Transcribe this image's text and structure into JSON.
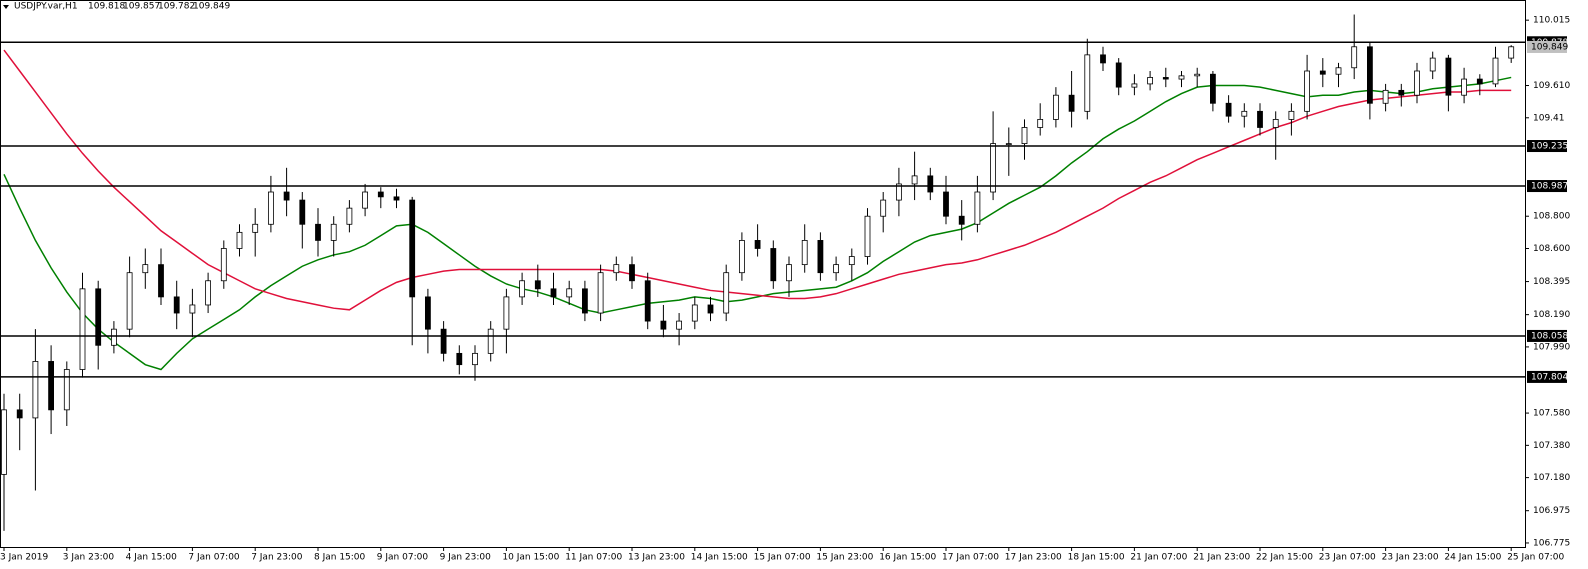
{
  "chart_data": {
    "type": "candlestick",
    "title": "USDJPY.var,H1",
    "header_prices": [
      109.818,
      109.857,
      109.782,
      109.849
    ],
    "current_price": 109.849,
    "categories": [
      "3 Jan 2019",
      null,
      null,
      null,
      "3 Jan 23:00",
      null,
      null,
      null,
      "4 Jan 15:00",
      null,
      null,
      null,
      "7 Jan 07:00",
      null,
      null,
      null,
      "7 Jan 23:00",
      null,
      null,
      null,
      "8 Jan 15:00",
      null,
      null,
      null,
      "9 Jan 07:00",
      null,
      null,
      null,
      "9 Jan 23:00",
      null,
      null,
      null,
      "10 Jan 15:00",
      null,
      null,
      null,
      "11 Jan 07:00",
      null,
      null,
      null,
      "13 Jan 23:00",
      null,
      null,
      null,
      "14 Jan 15:00",
      null,
      null,
      null,
      "15 Jan 07:00",
      null,
      null,
      null,
      "15 Jan 23:00",
      null,
      null,
      null,
      "16 Jan 15:00",
      null,
      null,
      null,
      "17 Jan 07:00",
      null,
      null,
      null,
      "17 Jan 23:00",
      null,
      null,
      null,
      "18 Jan 15:00",
      null,
      null,
      null,
      "21 Jan 07:00",
      null,
      null,
      null,
      "21 Jan 23:00",
      null,
      null,
      null,
      "22 Jan 15:00",
      null,
      null,
      null,
      "23 Jan 07:00",
      null,
      null,
      null,
      "23 Jan 23:00",
      null,
      null,
      null,
      "24 Jan 15:00",
      null,
      null,
      null,
      "25 Jan 07:00"
    ],
    "open": [
      107.2,
      107.6,
      107.55,
      107.9,
      107.6,
      107.85,
      108.35,
      108.0,
      108.1,
      108.45,
      108.5,
      108.3,
      108.2,
      108.25,
      108.4,
      108.6,
      108.7,
      108.75,
      108.95,
      108.9,
      108.75,
      108.65,
      108.75,
      108.85,
      108.95,
      108.92,
      108.9,
      108.3,
      108.1,
      107.95,
      107.88,
      107.95,
      108.1,
      108.3,
      108.4,
      108.35,
      108.3,
      108.35,
      108.2,
      108.45,
      108.5,
      108.4,
      108.15,
      108.1,
      108.15,
      108.25,
      108.2,
      108.45,
      108.65,
      108.6,
      108.4,
      108.5,
      108.65,
      108.45,
      108.5,
      108.55,
      108.8,
      108.9,
      109.0,
      109.05,
      108.95,
      108.8,
      108.75,
      108.95,
      109.25,
      109.25,
      109.35,
      109.4,
      109.55,
      109.45,
      109.8,
      109.75,
      109.6,
      109.62,
      109.66,
      109.65,
      109.67,
      109.68,
      109.5,
      109.42,
      109.45,
      109.35,
      109.4,
      109.45,
      109.7,
      109.68,
      109.72,
      109.85,
      109.5,
      109.58,
      109.55,
      109.7,
      109.78,
      109.55,
      109.65,
      109.62,
      109.78
    ],
    "high": [
      107.7,
      107.7,
      108.1,
      108.0,
      107.9,
      108.45,
      108.4,
      108.15,
      108.55,
      108.6,
      108.6,
      108.4,
      108.35,
      108.45,
      108.65,
      108.75,
      108.85,
      109.05,
      109.1,
      108.95,
      108.85,
      108.8,
      108.9,
      109.0,
      108.98,
      108.97,
      108.92,
      108.35,
      108.15,
      108.0,
      108.0,
      108.15,
      108.35,
      108.45,
      108.5,
      108.45,
      108.4,
      108.4,
      108.5,
      108.55,
      108.55,
      108.45,
      108.25,
      108.2,
      108.3,
      108.3,
      108.5,
      108.7,
      108.75,
      108.65,
      108.55,
      108.75,
      108.7,
      108.55,
      108.6,
      108.85,
      108.95,
      109.1,
      109.2,
      109.1,
      109.05,
      108.9,
      109.05,
      109.45,
      109.35,
      109.4,
      109.5,
      109.6,
      109.7,
      109.9,
      109.85,
      109.78,
      109.68,
      109.7,
      109.72,
      109.7,
      109.72,
      109.7,
      109.55,
      109.5,
      109.5,
      109.45,
      109.5,
      109.8,
      109.78,
      109.75,
      110.05,
      109.88,
      109.62,
      109.62,
      109.75,
      109.82,
      109.8,
      109.72,
      109.68,
      109.85,
      109.86
    ],
    "low": [
      106.85,
      107.35,
      107.1,
      107.45,
      107.5,
      107.8,
      107.85,
      107.95,
      108.05,
      108.35,
      108.25,
      108.1,
      108.05,
      108.2,
      108.35,
      108.55,
      108.55,
      108.7,
      108.8,
      108.6,
      108.55,
      108.55,
      108.7,
      108.8,
      108.85,
      108.85,
      108.0,
      107.95,
      107.9,
      107.82,
      107.78,
      107.9,
      107.95,
      108.25,
      108.3,
      108.25,
      108.25,
      108.15,
      108.15,
      108.4,
      108.35,
      108.1,
      108.05,
      108.0,
      108.1,
      108.15,
      108.15,
      108.4,
      108.55,
      108.35,
      108.3,
      108.45,
      108.4,
      108.4,
      108.4,
      108.5,
      108.7,
      108.8,
      108.9,
      108.9,
      108.75,
      108.65,
      108.7,
      108.9,
      109.05,
      109.15,
      109.3,
      109.35,
      109.35,
      109.4,
      109.7,
      109.55,
      109.55,
      109.58,
      109.6,
      109.6,
      109.6,
      109.45,
      109.38,
      109.35,
      109.3,
      109.15,
      109.3,
      109.4,
      109.6,
      109.6,
      109.65,
      109.4,
      109.45,
      109.48,
      109.5,
      109.65,
      109.45,
      109.5,
      109.55,
      109.6,
      109.75
    ],
    "close": [
      107.6,
      107.55,
      107.9,
      107.6,
      107.85,
      108.35,
      108.0,
      108.1,
      108.45,
      108.5,
      108.3,
      108.2,
      108.25,
      108.4,
      108.6,
      108.7,
      108.75,
      108.95,
      108.9,
      108.75,
      108.65,
      108.75,
      108.85,
      108.95,
      108.92,
      108.9,
      108.3,
      108.1,
      107.95,
      107.88,
      107.95,
      108.1,
      108.3,
      108.4,
      108.35,
      108.3,
      108.35,
      108.2,
      108.45,
      108.5,
      108.4,
      108.15,
      108.1,
      108.15,
      108.25,
      108.2,
      108.45,
      108.65,
      108.6,
      108.4,
      108.5,
      108.65,
      108.45,
      108.5,
      108.55,
      108.8,
      108.9,
      109.0,
      109.05,
      108.95,
      108.8,
      108.75,
      108.95,
      109.25,
      109.25,
      109.35,
      109.4,
      109.55,
      109.45,
      109.8,
      109.75,
      109.6,
      109.62,
      109.66,
      109.65,
      109.67,
      109.68,
      109.5,
      109.42,
      109.45,
      109.35,
      109.4,
      109.45,
      109.7,
      109.68,
      109.72,
      109.85,
      109.5,
      109.58,
      109.55,
      109.7,
      109.78,
      109.55,
      109.65,
      109.62,
      109.78,
      109.85
    ],
    "series": [
      {
        "color": "#008000",
        "values": [
          109.06,
          108.85,
          108.65,
          108.48,
          108.33,
          108.2,
          108.1,
          108.02,
          107.95,
          107.88,
          107.85,
          107.95,
          108.04,
          108.1,
          108.16,
          108.22,
          108.3,
          108.37,
          108.43,
          108.49,
          108.53,
          108.56,
          108.58,
          108.62,
          108.68,
          108.74,
          108.75,
          108.7,
          108.63,
          108.56,
          108.49,
          108.43,
          108.38,
          108.35,
          108.33,
          108.3,
          108.26,
          108.22,
          108.2,
          108.22,
          108.24,
          108.26,
          108.27,
          108.28,
          108.3,
          108.29,
          108.27,
          108.28,
          108.3,
          108.32,
          108.33,
          108.34,
          108.35,
          108.36,
          108.4,
          108.45,
          108.52,
          108.58,
          108.64,
          108.68,
          108.7,
          108.72,
          108.76,
          108.82,
          108.88,
          108.93,
          108.98,
          109.05,
          109.13,
          109.2,
          109.28,
          109.34,
          109.39,
          109.45,
          109.51,
          109.56,
          109.6,
          109.61,
          109.61,
          109.61,
          109.6,
          109.58,
          109.56,
          109.54,
          109.55,
          109.55,
          109.57,
          109.58,
          109.57,
          109.56,
          109.57,
          109.59,
          109.6,
          109.61,
          109.62,
          109.64,
          109.66
        ]
      },
      {
        "color": "#e0103a",
        "values": [
          109.83,
          109.7,
          109.57,
          109.44,
          109.31,
          109.19,
          109.08,
          108.98,
          108.89,
          108.8,
          108.71,
          108.64,
          108.57,
          108.5,
          108.45,
          108.4,
          108.35,
          108.32,
          108.29,
          108.27,
          108.25,
          108.23,
          108.22,
          108.28,
          108.34,
          108.39,
          108.42,
          108.44,
          108.46,
          108.47,
          108.47,
          108.47,
          108.47,
          108.47,
          108.47,
          108.47,
          108.47,
          108.47,
          108.47,
          108.46,
          108.44,
          108.42,
          108.4,
          108.38,
          108.36,
          108.34,
          108.33,
          108.32,
          108.31,
          108.3,
          108.29,
          108.29,
          108.3,
          108.32,
          108.35,
          108.38,
          108.41,
          108.44,
          108.46,
          108.48,
          108.5,
          108.51,
          108.53,
          108.56,
          108.59,
          108.62,
          108.66,
          108.7,
          108.75,
          108.8,
          108.85,
          108.91,
          108.96,
          109.01,
          109.05,
          109.1,
          109.15,
          109.19,
          109.23,
          109.27,
          109.31,
          109.35,
          109.38,
          109.42,
          109.45,
          109.48,
          109.5,
          109.52,
          109.53,
          109.54,
          109.55,
          109.56,
          109.57,
          109.57,
          109.58,
          109.58,
          109.58
        ]
      }
    ],
    "levels": [
      109.878,
      109.235,
      108.987,
      108.058,
      107.804
    ],
    "ylim": [
      106.75,
      110.14
    ],
    "yticks": [
      110.015,
      {
        "value": 109.61,
        "label": "109.610"
      },
      109.41,
      {
        "value": 108.8,
        "label": "108.800"
      },
      {
        "value": 108.6,
        "label": "108.600"
      },
      108.395,
      {
        "value": 108.19,
        "label": "108.190"
      },
      {
        "value": 107.99,
        "label": "107.990"
      },
      {
        "value": 107.58,
        "label": "107.580"
      },
      {
        "value": 107.38,
        "label": "107.380"
      },
      {
        "value": 107.18,
        "label": "107.180"
      },
      106.975,
      106.775
    ]
  }
}
